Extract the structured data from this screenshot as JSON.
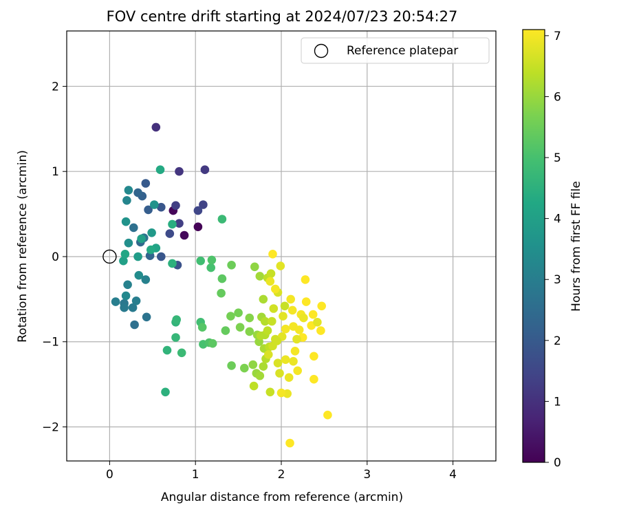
{
  "chart_data": {
    "type": "scatter",
    "title": "FOV centre drift starting at 2024/07/23 20:54:27",
    "xlabel": "Angular distance from reference (arcmin)",
    "ylabel": "Rotation from reference (arcmin)",
    "xlim": [
      -0.5,
      4.5
    ],
    "ylim": [
      -2.4,
      2.65
    ],
    "xticks": [
      0,
      1,
      2,
      3,
      4
    ],
    "xtick_labels": [
      "0",
      "1",
      "2",
      "3",
      "4"
    ],
    "yticks": [
      -2,
      -1,
      0,
      1,
      2
    ],
    "ytick_labels": [
      "−2",
      "−1",
      "0",
      "1",
      "2"
    ],
    "grid": true,
    "legend": {
      "position": "upper right",
      "entries": [
        "Reference platepar"
      ]
    },
    "reference_point": {
      "x": 0,
      "y": 0,
      "label": "Reference platepar"
    },
    "colorbar": {
      "label": "Hours from first FF file",
      "colormap": "viridis",
      "range": [
        0,
        7.1
      ],
      "ticks": [
        0,
        1,
        2,
        3,
        4,
        5,
        6,
        7
      ],
      "tick_labels": [
        "0",
        "1",
        "2",
        "3",
        "4",
        "5",
        "6",
        "7"
      ]
    },
    "series": [
      {
        "points": [
          [
            0.74,
            0.54,
            0.1
          ],
          [
            1.03,
            0.35,
            0.05
          ],
          [
            0.87,
            0.25,
            0.15
          ],
          [
            0.54,
            1.52,
            1.0
          ],
          [
            0.81,
            1.0,
            1.1
          ],
          [
            1.11,
            1.02,
            1.2
          ],
          [
            0.77,
            0.6,
            1.3
          ],
          [
            0.81,
            0.39,
            1.3
          ],
          [
            1.09,
            0.61,
            1.4
          ],
          [
            1.03,
            0.54,
            1.5
          ],
          [
            0.7,
            0.27,
            1.6
          ],
          [
            0.79,
            -0.1,
            1.8
          ],
          [
            0.6,
            0.58,
            1.9
          ],
          [
            0.6,
            0.0,
            1.9
          ],
          [
            0.42,
            0.86,
            2.0
          ],
          [
            0.45,
            0.55,
            2.1
          ],
          [
            0.38,
            0.71,
            2.2
          ],
          [
            0.33,
            0.75,
            2.3
          ],
          [
            0.47,
            0.01,
            2.3
          ],
          [
            0.36,
            0.17,
            2.4
          ],
          [
            0.28,
            0.34,
            2.6
          ],
          [
            0.29,
            -0.8,
            2.6
          ],
          [
            0.4,
            0.22,
            2.7
          ],
          [
            0.43,
            -0.71,
            2.7
          ],
          [
            0.17,
            -0.55,
            2.8
          ],
          [
            0.17,
            -0.6,
            2.9
          ],
          [
            0.27,
            -0.6,
            2.9
          ],
          [
            0.31,
            -0.52,
            3.0
          ],
          [
            0.07,
            -0.53,
            3.0
          ],
          [
            0.42,
            -0.27,
            3.1
          ],
          [
            0.21,
            -0.33,
            3.1
          ],
          [
            0.2,
            0.66,
            3.2
          ],
          [
            0.22,
            0.78,
            3.3
          ],
          [
            0.19,
            -0.46,
            3.3
          ],
          [
            0.34,
            -0.22,
            3.4
          ],
          [
            0.22,
            0.16,
            3.5
          ],
          [
            0.52,
            0.61,
            3.6
          ],
          [
            0.19,
            0.41,
            3.6
          ],
          [
            0.49,
            0.28,
            3.8
          ],
          [
            0.33,
            0.0,
            3.9
          ],
          [
            0.16,
            -0.05,
            4.0
          ],
          [
            0.37,
            0.21,
            4.0
          ],
          [
            0.54,
            0.1,
            4.1
          ],
          [
            0.18,
            0.03,
            4.2
          ],
          [
            0.48,
            0.08,
            4.3
          ],
          [
            0.59,
            1.02,
            4.3
          ],
          [
            0.73,
            0.38,
            4.4
          ],
          [
            0.73,
            -0.08,
            4.5
          ],
          [
            0.65,
            -1.59,
            4.5
          ],
          [
            0.67,
            -1.1,
            4.6
          ],
          [
            0.77,
            -0.77,
            4.6
          ],
          [
            0.77,
            -0.95,
            4.7
          ],
          [
            0.78,
            -0.74,
            4.7
          ],
          [
            0.84,
            -1.13,
            4.8
          ],
          [
            1.31,
            0.44,
            4.8
          ],
          [
            1.06,
            -0.05,
            4.9
          ],
          [
            1.06,
            -0.77,
            4.9
          ],
          [
            1.09,
            -1.03,
            5.0
          ],
          [
            1.18,
            -0.13,
            5.0
          ],
          [
            1.16,
            -1.01,
            5.1
          ],
          [
            1.19,
            -0.04,
            5.1
          ],
          [
            1.08,
            -0.83,
            5.2
          ],
          [
            1.2,
            -1.02,
            5.3
          ],
          [
            1.31,
            -0.26,
            5.3
          ],
          [
            1.3,
            -0.43,
            5.4
          ],
          [
            1.35,
            -0.87,
            5.4
          ],
          [
            1.42,
            -0.1,
            5.5
          ],
          [
            1.42,
            -1.28,
            5.5
          ],
          [
            1.41,
            -0.7,
            5.6
          ],
          [
            1.5,
            -0.66,
            5.6
          ],
          [
            1.52,
            -0.83,
            5.7
          ],
          [
            1.57,
            -1.31,
            5.7
          ],
          [
            1.63,
            -0.72,
            5.8
          ],
          [
            1.63,
            -0.88,
            5.8
          ],
          [
            1.67,
            -1.27,
            5.9
          ],
          [
            1.69,
            -0.12,
            5.9
          ],
          [
            1.71,
            -1.37,
            6.0
          ],
          [
            1.72,
            -0.92,
            6.0
          ],
          [
            1.74,
            -1.0,
            6.0
          ],
          [
            1.75,
            -1.4,
            6.1
          ],
          [
            1.75,
            -0.23,
            6.1
          ],
          [
            1.77,
            -0.71,
            6.1
          ],
          [
            1.79,
            -0.5,
            6.2
          ],
          [
            1.79,
            -1.29,
            6.2
          ],
          [
            1.8,
            -1.08,
            6.2
          ],
          [
            1.81,
            -0.76,
            6.3
          ],
          [
            1.81,
            -0.92,
            6.3
          ],
          [
            1.82,
            -1.2,
            6.3
          ],
          [
            1.84,
            -0.25,
            6.4
          ],
          [
            1.84,
            -0.87,
            6.4
          ],
          [
            1.86,
            -1.06,
            6.4
          ],
          [
            1.87,
            -1.59,
            6.5
          ],
          [
            1.88,
            -0.2,
            6.5
          ],
          [
            1.89,
            -0.76,
            6.5
          ],
          [
            1.9,
            -1.05,
            6.6
          ],
          [
            1.91,
            -0.61,
            6.6
          ],
          [
            1.93,
            -0.97,
            6.6
          ],
          [
            1.96,
            -1.25,
            6.7
          ],
          [
            1.96,
            -0.42,
            6.7
          ],
          [
            1.98,
            -1.37,
            6.7
          ],
          [
            1.99,
            -0.11,
            6.8
          ],
          [
            2.01,
            -0.94,
            6.8
          ],
          [
            2.02,
            -0.7,
            6.8
          ],
          [
            2.05,
            -1.21,
            6.9
          ],
          [
            2.07,
            -1.61,
            6.9
          ],
          [
            2.09,
            -1.42,
            6.9
          ],
          [
            2.11,
            -0.5,
            7.0
          ],
          [
            2.14,
            -0.82,
            7.0
          ],
          [
            2.16,
            -1.11,
            7.0
          ],
          [
            2.19,
            -1.34,
            7.0
          ],
          [
            2.21,
            -0.86,
            7.0
          ],
          [
            2.23,
            -0.68,
            7.0
          ],
          [
            2.25,
            -0.95,
            7.1
          ],
          [
            2.28,
            -0.27,
            7.1
          ],
          [
            2.29,
            -0.53,
            7.1
          ],
          [
            2.35,
            -0.81,
            7.1
          ],
          [
            2.37,
            -0.68,
            7.1
          ],
          [
            2.38,
            -1.44,
            7.1
          ],
          [
            2.38,
            -1.17,
            7.1
          ],
          [
            2.46,
            -0.87,
            7.1
          ],
          [
            2.47,
            -0.58,
            7.1
          ],
          [
            2.54,
            -1.86,
            7.1
          ],
          [
            2.1,
            -2.19,
            7.1
          ],
          [
            1.9,
            0.03,
            7.1
          ],
          [
            2.0,
            -1.6,
            7.0
          ],
          [
            2.05,
            -0.85,
            7.0
          ],
          [
            1.93,
            -0.38,
            7.0
          ],
          [
            2.13,
            -0.63,
            7.0
          ],
          [
            2.26,
            -0.72,
            6.9
          ],
          [
            1.87,
            -0.29,
            6.9
          ],
          [
            2.14,
            -1.23,
            6.9
          ],
          [
            2.18,
            -0.97,
            6.8
          ],
          [
            2.42,
            -0.77,
            6.8
          ],
          [
            1.85,
            -1.15,
            6.7
          ],
          [
            1.95,
            -0.99,
            6.6
          ],
          [
            2.04,
            -0.58,
            6.5
          ],
          [
            1.68,
            -1.52,
            6.4
          ],
          [
            1.76,
            -0.93,
            6.3
          ]
        ]
      }
    ]
  }
}
